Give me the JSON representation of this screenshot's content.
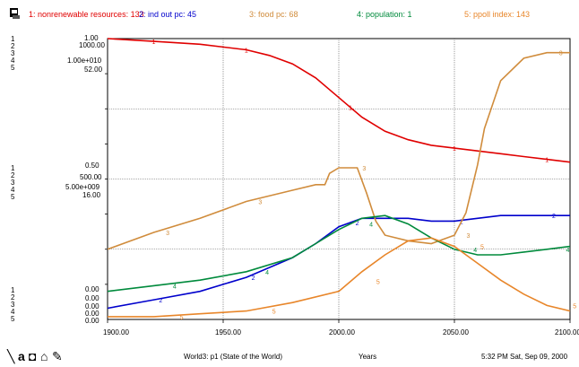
{
  "legend": [
    {
      "text": "1: nonrenewable resources: 133",
      "color": "#e00000"
    },
    {
      "text": "2: ind out pc: 45",
      "color": "#0000cc"
    },
    {
      "text": "3: food pc: 68",
      "color": "#d08c3c"
    },
    {
      "text": "4: population: 1",
      "color": "#008a3c"
    },
    {
      "text": "5: ppoll index: 143",
      "color": "#e8862a"
    }
  ],
  "scale_indices": {
    "top": [
      "1",
      "2",
      "3",
      "4",
      "5"
    ],
    "mid": [
      "1",
      "2",
      "3",
      "4",
      "5"
    ],
    "bot": [
      "1",
      "2",
      "3",
      "4",
      "5"
    ]
  },
  "y_ticks": {
    "top": [
      "1.00",
      "1000.00",
      "1.00e+010",
      "52.00"
    ],
    "mid": [
      "0.50",
      "500.00",
      "5.00e+009",
      "16.00"
    ],
    "bot": [
      "0.00",
      "0.00",
      "0.00",
      "0.00",
      "0.00"
    ]
  },
  "x_ticks": [
    "1900.00",
    "1950.00",
    "2000.00",
    "2050.00",
    "2100.00"
  ],
  "footer": {
    "page": "World3: p1 (State of the World)",
    "axis": "Years",
    "time": "5:32 PM  Sat, Sep 09, 2000"
  },
  "chart_data": {
    "type": "line",
    "x_range": [
      1900,
      2100
    ],
    "x_ticks": [
      1900,
      1950,
      2000,
      2050,
      2100
    ],
    "normalized_y_range": [
      0,
      1
    ],
    "grid": true,
    "legend_position": "top",
    "series": [
      {
        "name": "nonrenewable resources",
        "color": "#e00000",
        "x": [
          1900,
          1920,
          1940,
          1960,
          1970,
          1980,
          1990,
          2000,
          2010,
          2020,
          2030,
          2040,
          2050,
          2060,
          2070,
          2080,
          2090,
          2100
        ],
        "y": [
          1.0,
          0.99,
          0.98,
          0.96,
          0.94,
          0.91,
          0.86,
          0.79,
          0.72,
          0.67,
          0.64,
          0.62,
          0.61,
          0.6,
          0.59,
          0.58,
          0.57,
          0.56
        ]
      },
      {
        "name": "industrial output per capita",
        "color": "#0000cc",
        "x": [
          1900,
          1920,
          1940,
          1960,
          1980,
          1990,
          2000,
          2010,
          2020,
          2030,
          2040,
          2050,
          2060,
          2070,
          2080,
          2090,
          2100
        ],
        "y": [
          0.04,
          0.07,
          0.1,
          0.15,
          0.22,
          0.27,
          0.33,
          0.36,
          0.36,
          0.36,
          0.35,
          0.35,
          0.36,
          0.37,
          0.37,
          0.37,
          0.37
        ]
      },
      {
        "name": "food per capita",
        "color": "#d08c3c",
        "x": [
          1900,
          1920,
          1940,
          1960,
          1980,
          1990,
          1994,
          1996,
          2000,
          2008,
          2012,
          2016,
          2020,
          2030,
          2040,
          2050,
          2055,
          2060,
          2063,
          2070,
          2080,
          2090,
          2100
        ],
        "y": [
          0.25,
          0.31,
          0.36,
          0.42,
          0.46,
          0.48,
          0.48,
          0.52,
          0.54,
          0.54,
          0.45,
          0.35,
          0.3,
          0.28,
          0.27,
          0.3,
          0.38,
          0.55,
          0.68,
          0.85,
          0.93,
          0.95,
          0.95
        ]
      },
      {
        "name": "population",
        "color": "#008a3c",
        "x": [
          1900,
          1920,
          1940,
          1960,
          1980,
          1990,
          2000,
          2010,
          2020,
          2030,
          2040,
          2050,
          2060,
          2070,
          2080,
          2090,
          2100
        ],
        "y": [
          0.1,
          0.12,
          0.14,
          0.17,
          0.22,
          0.27,
          0.32,
          0.36,
          0.37,
          0.34,
          0.29,
          0.25,
          0.23,
          0.23,
          0.24,
          0.25,
          0.26
        ]
      },
      {
        "name": "persistent pollution index",
        "color": "#e8862a",
        "x": [
          1900,
          1920,
          1940,
          1960,
          1980,
          2000,
          2010,
          2020,
          2030,
          2040,
          2050,
          2060,
          2070,
          2080,
          2090,
          2100
        ],
        "y": [
          0.01,
          0.01,
          0.02,
          0.03,
          0.06,
          0.1,
          0.17,
          0.23,
          0.28,
          0.29,
          0.26,
          0.2,
          0.14,
          0.09,
          0.05,
          0.03
        ]
      }
    ]
  }
}
